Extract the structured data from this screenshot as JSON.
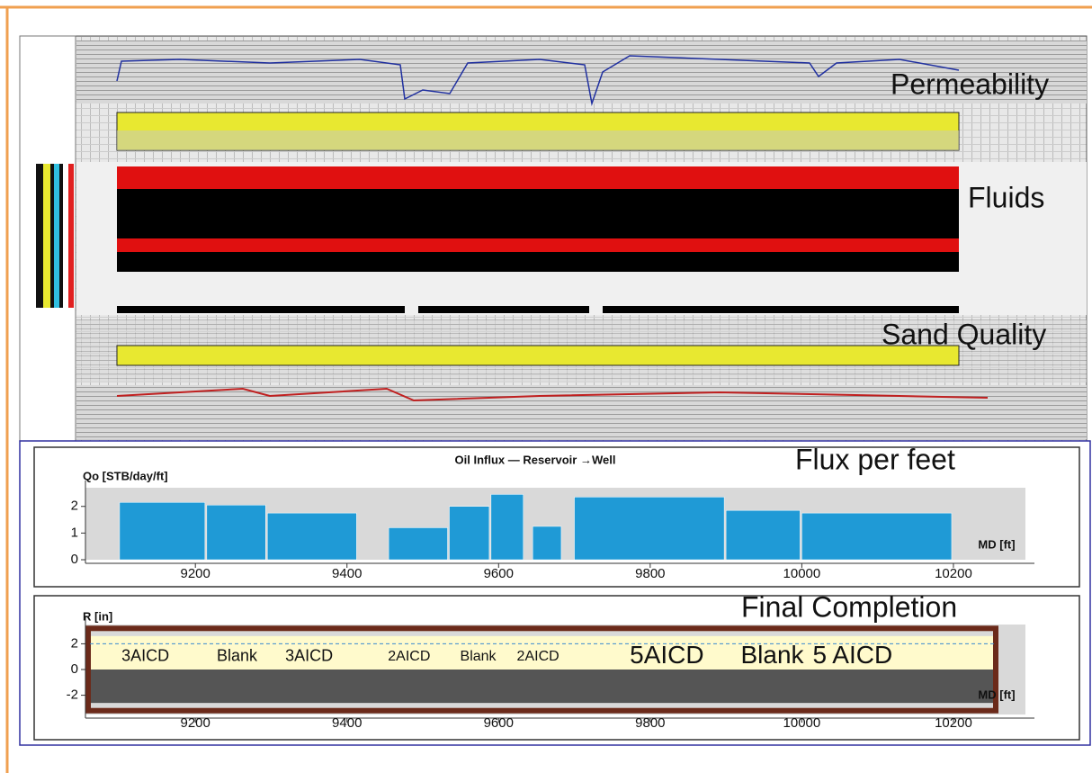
{
  "log_panel": {
    "labels": [
      "Permeability",
      "Fluids",
      "Sand Quality"
    ]
  },
  "chart_data": [
    {
      "type": "histogram",
      "title": "Oil Influx — Reservoir →Well",
      "annotation": "Flux per feet",
      "y_label": "Qo [STB/day/ft]",
      "x_label": "MD [ft]",
      "color": "#1f9ad6",
      "bins": [
        9100,
        9215,
        9295,
        9415,
        9455,
        9535,
        9590,
        9635,
        9645,
        9685,
        9700,
        9900,
        10000,
        10200
      ],
      "values": [
        2.15,
        2.05,
        1.75,
        0,
        1.2,
        2.0,
        2.45,
        0,
        1.25,
        0,
        2.35,
        1.85,
        1.75
      ],
      "xlim": [
        9055,
        10295
      ],
      "xticks": [
        9200,
        9400,
        9600,
        9800,
        10000,
        10200
      ],
      "ylim": [
        0,
        2.7
      ],
      "yticks": [
        0,
        1,
        2
      ]
    },
    {
      "type": "completion",
      "annotation": "Final Completion",
      "y_label": "R [in]",
      "x_label": "MD [ft]",
      "labels": [
        "3AICD",
        "Blank",
        "3AICD",
        "2AICD",
        "Blank",
        "2AICD",
        "5AICD",
        "Blank",
        "5 AICD"
      ],
      "x": [
        9134,
        9255,
        9350,
        9482,
        9573,
        9652,
        9822,
        9961,
        10067
      ],
      "xlim": [
        9055,
        10295
      ],
      "xticks": [
        9200,
        9400,
        9600,
        9800,
        10000,
        10200
      ],
      "ylim": [
        -3.5,
        3.5
      ],
      "yticks": [
        2,
        0,
        -2
      ]
    }
  ]
}
